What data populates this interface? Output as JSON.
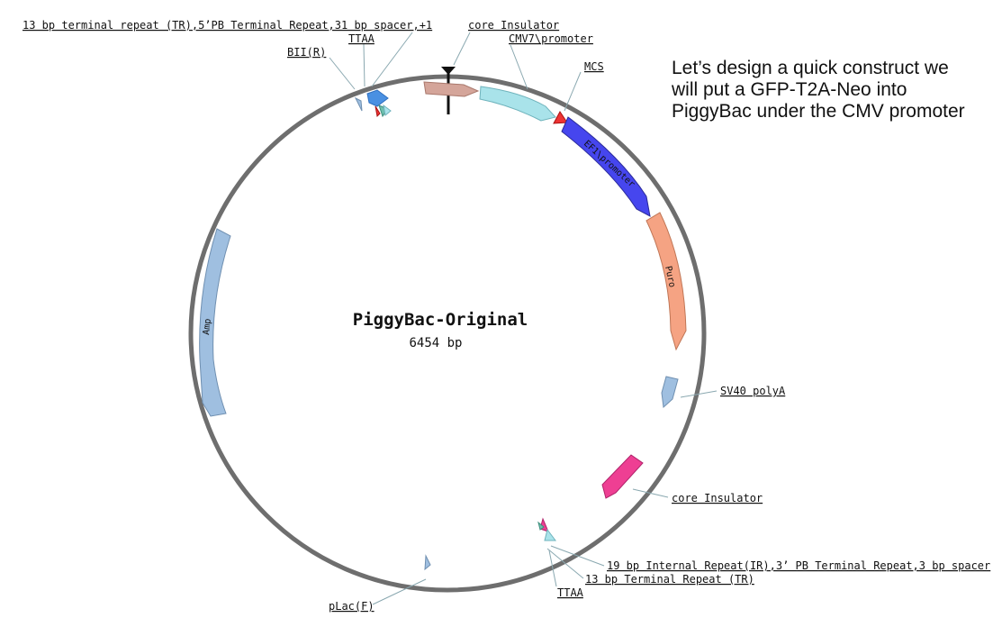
{
  "map": {
    "name": "PiggyBac-Original",
    "length": "6454 bp"
  },
  "note": "Let’s design a quick construct we will put a GFP-T2A-Neo into PiggyBac under the CMV promoter",
  "labels": {
    "tr5": "13 bp terminal repeat (TR),5’PB Terminal Repeat,31 bp spacer,+1",
    "ttaa_top": "TTAA",
    "bii": "BII(R)",
    "core_ins_top": "core Insulator",
    "cmv": "CMV7\\promoter",
    "mcs": "MCS",
    "sv40": "SV40 polyA",
    "core_ins_bottom": "core Insulator",
    "ir3": "19 bp Internal Repeat(IR),3’ PB Terminal Repeat,3 bp spacer",
    "tr_bottom": "13 bp Terminal Repeat (TR)",
    "ttaa_bottom": "TTAA",
    "plac": "pLac(F)"
  },
  "inner_labels": {
    "ef1": "EF1\\promoter",
    "puro": "Puro",
    "amp": "Amp"
  },
  "colors": {
    "backbone": "#6e6e6e",
    "core_insulator_top": "#d4a59a",
    "cmv": "#a9e3ea",
    "mcs": "#ee3333",
    "ef1": "#4646ee",
    "puro": "#f5a383",
    "sv40": "#9fbfe0",
    "core_insulator_bottom": "#ee3f93",
    "amp": "#9fbfe0",
    "plac": "#9fbfe0"
  }
}
